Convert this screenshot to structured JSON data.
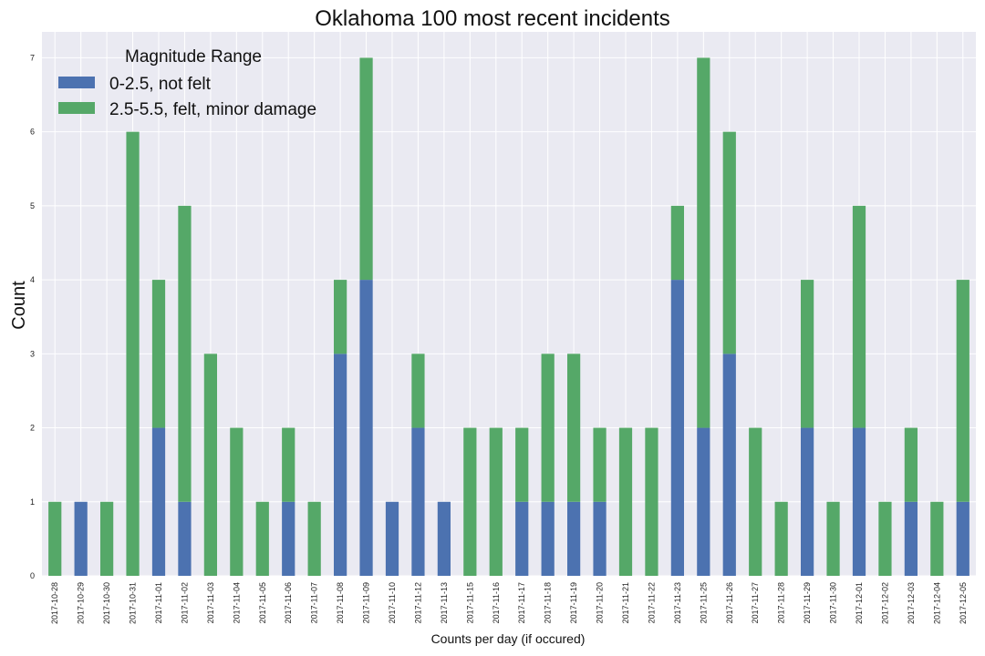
{
  "chart_data": {
    "type": "bar",
    "stacked": true,
    "title": "Oklahoma 100 most recent incidents",
    "xlabel": "Counts per day (if occured)",
    "ylabel": "Count",
    "ylim": [
      0,
      7.35
    ],
    "yticks": [
      0,
      1,
      2,
      3,
      4,
      5,
      6,
      7
    ],
    "grid": true,
    "legend": {
      "title": "Magnitude Range",
      "placement": "top-left"
    },
    "categories": [
      "2017-10-28",
      "2017-10-29",
      "2017-10-30",
      "2017-10-31",
      "2017-11-01",
      "2017-11-02",
      "2017-11-03",
      "2017-11-04",
      "2017-11-05",
      "2017-11-06",
      "2017-11-07",
      "2017-11-08",
      "2017-11-09",
      "2017-11-10",
      "2017-11-12",
      "2017-11-13",
      "2017-11-15",
      "2017-11-16",
      "2017-11-17",
      "2017-11-18",
      "2017-11-19",
      "2017-11-20",
      "2017-11-21",
      "2017-11-22",
      "2017-11-23",
      "2017-11-25",
      "2017-11-26",
      "2017-11-27",
      "2017-11-28",
      "2017-11-29",
      "2017-11-30",
      "2017-12-01",
      "2017-12-02",
      "2017-12-03",
      "2017-12-04",
      "2017-12-05"
    ],
    "series": [
      {
        "name": "0-2.5, not felt",
        "color": "#4c72b0",
        "values": [
          0,
          1,
          0,
          0,
          2,
          1,
          0,
          0,
          0,
          1,
          0,
          3,
          4,
          1,
          2,
          1,
          0,
          0,
          1,
          1,
          1,
          1,
          0,
          0,
          4,
          2,
          3,
          0,
          0,
          2,
          0,
          2,
          0,
          1,
          0,
          1
        ]
      },
      {
        "name": "2.5-5.5, felt, minor damage",
        "color": "#55a868",
        "values": [
          1,
          0,
          1,
          6,
          2,
          4,
          3,
          2,
          1,
          1,
          1,
          1,
          3,
          0,
          1,
          0,
          2,
          2,
          1,
          2,
          2,
          1,
          2,
          2,
          1,
          5,
          3,
          2,
          1,
          2,
          1,
          3,
          1,
          1,
          1,
          3
        ]
      }
    ],
    "colors": {
      "plot_background": "#eaeaf2",
      "grid": "#ffffff"
    }
  }
}
